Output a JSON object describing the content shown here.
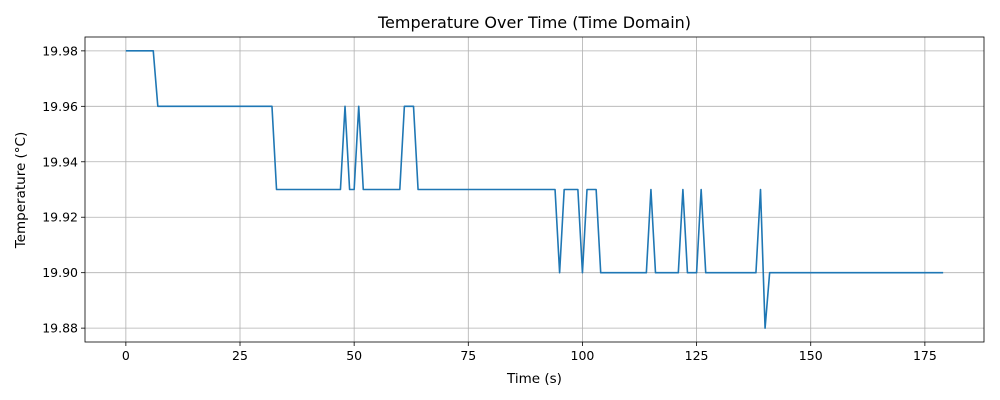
{
  "chart_data": {
    "type": "line",
    "title": "Temperature Over Time (Time Domain)",
    "xlabel": "Time (s)",
    "ylabel": "Temperature (°C)",
    "xlim": [
      -8.95,
      187.95
    ],
    "ylim": [
      19.875,
      19.985
    ],
    "grid": true,
    "x_ticks": [
      0,
      25,
      50,
      75,
      100,
      125,
      150,
      175
    ],
    "x_tick_labels": [
      "0",
      "25",
      "50",
      "75",
      "100",
      "125",
      "150",
      "175"
    ],
    "y_ticks": [
      19.88,
      19.9,
      19.92,
      19.94,
      19.96,
      19.98
    ],
    "y_tick_labels": [
      "19.88",
      "19.90",
      "19.92",
      "19.94",
      "19.96",
      "19.98"
    ],
    "series": [
      {
        "color": "#1f77b4",
        "x": [
          0,
          6,
          7,
          32,
          33,
          47,
          48,
          49,
          50,
          51,
          52,
          60,
          61,
          63,
          64,
          94,
          95,
          96,
          99,
          100,
          101,
          103,
          104,
          114,
          115,
          116,
          121,
          122,
          123,
          125,
          126,
          127,
          138,
          139,
          140,
          141,
          179
        ],
        "y": [
          19.98,
          19.98,
          19.96,
          19.96,
          19.93,
          19.93,
          19.96,
          19.93,
          19.93,
          19.96,
          19.93,
          19.93,
          19.96,
          19.96,
          19.93,
          19.93,
          19.9,
          19.93,
          19.93,
          19.9,
          19.93,
          19.93,
          19.9,
          19.9,
          19.93,
          19.9,
          19.9,
          19.93,
          19.9,
          19.9,
          19.93,
          19.9,
          19.9,
          19.93,
          19.88,
          19.9,
          19.9
        ]
      }
    ]
  }
}
